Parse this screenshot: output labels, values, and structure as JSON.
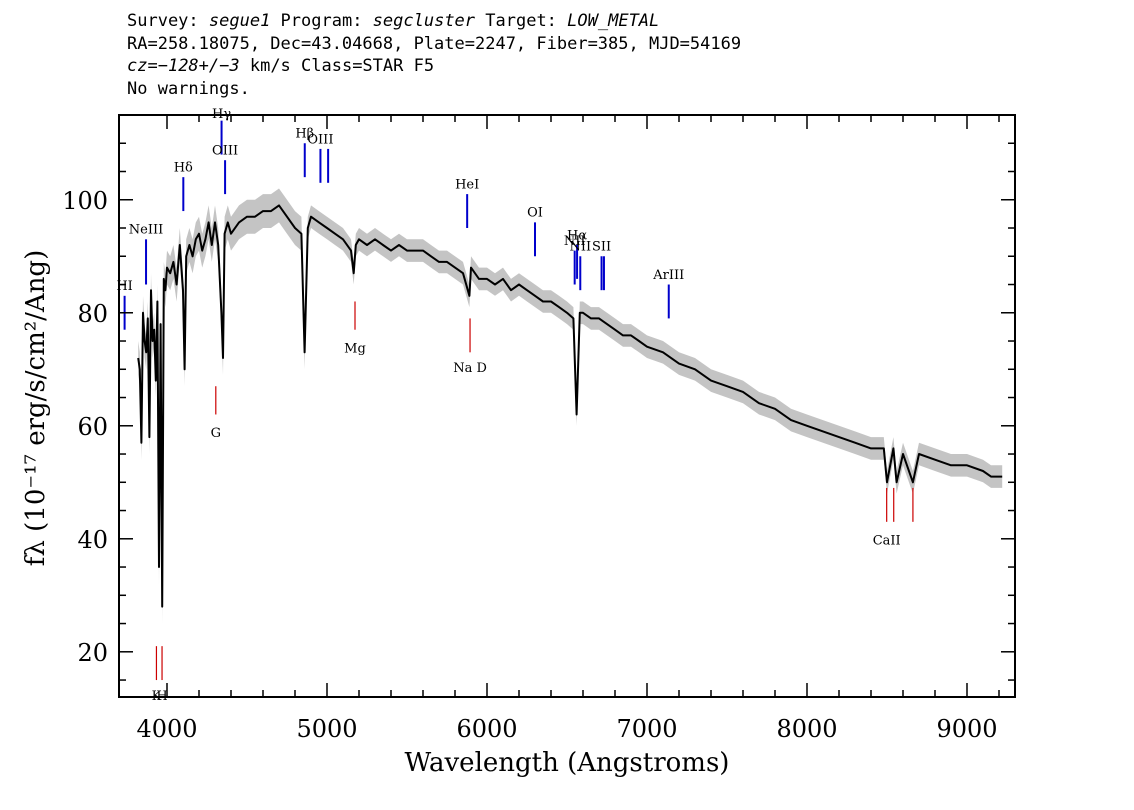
{
  "header": {
    "line1": {
      "survey_label": "Survey: ",
      "survey": "segue1",
      "program_label": " Program: ",
      "program": "segcluster",
      "target_label": " Target: ",
      "target": "LOW_METAL"
    },
    "line2": "RA=258.18075, Dec=43.04668, Plate=2247, Fiber=385, MJD=54169",
    "line3": {
      "cz_label": "cz=",
      "cz": "−128+/−3",
      "cz_rest": " km/s Class=STAR F5"
    },
    "line4": "No warnings."
  },
  "chart_data": {
    "type": "line",
    "xlabel": "Wavelength (Angstroms)",
    "ylabel": "fλ (10⁻¹⁷ erg/s/cm²/Ang)",
    "xlim": [
      3700,
      9300
    ],
    "ylim": [
      12,
      115
    ],
    "x_ticks": [
      4000,
      5000,
      6000,
      7000,
      8000,
      9000
    ],
    "y_ticks": [
      20,
      40,
      60,
      80,
      100
    ],
    "grid": false,
    "series": [
      {
        "role": "flux",
        "color": "#000000",
        "x": [
          3820,
          3830,
          3840,
          3850,
          3860,
          3870,
          3880,
          3890,
          3900,
          3910,
          3920,
          3930,
          3940,
          3950,
          3960,
          3970,
          3980,
          3990,
          4000,
          4020,
          4040,
          4060,
          4080,
          4100,
          4110,
          4120,
          4140,
          4160,
          4180,
          4200,
          4220,
          4240,
          4260,
          4280,
          4300,
          4320,
          4340,
          4350,
          4360,
          4380,
          4400,
          4450,
          4500,
          4550,
          4600,
          4650,
          4700,
          4750,
          4800,
          4840,
          4860,
          4880,
          4900,
          4950,
          5000,
          5050,
          5100,
          5150,
          5167,
          5180,
          5200,
          5250,
          5300,
          5350,
          5400,
          5450,
          5500,
          5550,
          5600,
          5650,
          5700,
          5750,
          5800,
          5850,
          5890,
          5900,
          5950,
          6000,
          6050,
          6100,
          6150,
          6200,
          6250,
          6300,
          6350,
          6400,
          6450,
          6500,
          6540,
          6560,
          6580,
          6600,
          6650,
          6700,
          6750,
          6800,
          6850,
          6900,
          6950,
          7000,
          7100,
          7200,
          7300,
          7400,
          7500,
          7600,
          7700,
          7800,
          7900,
          8000,
          8100,
          8200,
          8300,
          8400,
          8480,
          8500,
          8540,
          8560,
          8600,
          8662,
          8700,
          8800,
          8900,
          9000,
          9100,
          9150,
          9200,
          9220
        ],
        "y": [
          72,
          70,
          57,
          80,
          75,
          73,
          79,
          58,
          84,
          75,
          77,
          68,
          82,
          35,
          78,
          28,
          86,
          84,
          88,
          87,
          89,
          85,
          92,
          84,
          70,
          90,
          92,
          90,
          93,
          94,
          91,
          93,
          96,
          92,
          96,
          92,
          80,
          72,
          94,
          96,
          94,
          96,
          97,
          97,
          98,
          98,
          99,
          97,
          95,
          94,
          73,
          95,
          97,
          96,
          95,
          94,
          93,
          91,
          87,
          92,
          93,
          92,
          93,
          92,
          91,
          92,
          91,
          91,
          91,
          90,
          89,
          89,
          88,
          87,
          83,
          88,
          86,
          86,
          85,
          86,
          84,
          85,
          84,
          83,
          82,
          82,
          81,
          80,
          79,
          62,
          80,
          80,
          79,
          79,
          78,
          77,
          76,
          76,
          75,
          74,
          73,
          71,
          70,
          68,
          67,
          66,
          64,
          63,
          61,
          60,
          59,
          58,
          57,
          56,
          56,
          50,
          56,
          50,
          55,
          50,
          55,
          54,
          53,
          53,
          52,
          51,
          51,
          51
        ],
        "error": [
          3,
          3,
          3,
          3,
          3,
          3,
          3,
          3,
          3,
          3,
          3,
          3,
          3,
          3,
          3,
          3,
          3,
          3,
          3,
          3,
          3,
          3,
          3,
          3,
          3,
          3,
          3,
          3,
          3,
          3,
          3,
          3,
          3,
          3,
          3,
          3,
          3,
          3,
          3,
          3,
          3,
          3,
          3,
          3,
          3,
          3,
          3,
          3,
          3,
          3,
          3,
          2,
          2,
          2,
          2,
          2,
          2,
          2,
          2,
          2,
          2,
          2,
          2,
          2,
          2,
          2,
          2,
          2,
          2,
          2,
          2,
          2,
          2,
          2,
          2,
          2,
          2,
          2,
          2,
          2,
          2,
          2,
          2,
          2,
          2,
          2,
          2,
          2,
          2,
          2,
          2,
          2,
          2,
          2,
          2,
          2,
          2,
          2,
          2,
          2,
          2,
          2,
          2,
          2,
          2,
          2,
          2,
          2,
          2,
          2,
          2,
          2,
          2,
          2,
          2,
          2,
          2,
          2,
          2,
          2,
          2,
          2,
          2,
          2,
          2,
          2,
          2,
          2
        ]
      }
    ],
    "emission_lines": [
      {
        "label": "HI",
        "wavelength": 3735,
        "y_low": 77,
        "y_high": 83,
        "label_y": 84,
        "color": "#0000cc"
      },
      {
        "label": "NeIII",
        "wavelength": 3869,
        "y_low": 85,
        "y_high": 93,
        "label_y": 94,
        "color": "#0000cc"
      },
      {
        "label": "Hδ",
        "wavelength": 4102,
        "y_low": 98,
        "y_high": 104,
        "label_y": 105,
        "color": "#0000cc"
      },
      {
        "label": "Hγ",
        "wavelength": 4341,
        "y_low": 108,
        "y_high": 114,
        "label_y": 114.5,
        "color": "#0000cc"
      },
      {
        "label": "OIII",
        "wavelength": 4363,
        "y_low": 101,
        "y_high": 107,
        "label_y": 108,
        "color": "#0000cc"
      },
      {
        "label": "Hβ",
        "wavelength": 4861,
        "y_low": 104,
        "y_high": 110,
        "label_y": 111,
        "color": "#0000cc"
      },
      {
        "label": "OIII",
        "wavelength": 4959,
        "y_low": 103,
        "y_high": 109,
        "label_y": 110,
        "color": "#0000cc"
      },
      {
        "label": "",
        "wavelength": 5007,
        "y_low": 103,
        "y_high": 109,
        "label_y": 110,
        "color": "#0000cc"
      },
      {
        "label": "HeI",
        "wavelength": 5876,
        "y_low": 95,
        "y_high": 101,
        "label_y": 102,
        "color": "#0000cc"
      },
      {
        "label": "OI",
        "wavelength": 6300,
        "y_low": 90,
        "y_high": 96,
        "label_y": 97,
        "color": "#0000cc"
      },
      {
        "label": "NII",
        "wavelength": 6548,
        "y_low": 85,
        "y_high": 91,
        "label_y": 92,
        "color": "#0000cc"
      },
      {
        "label": "Hα",
        "wavelength": 6563,
        "y_low": 86,
        "y_high": 92,
        "label_y": 93,
        "color": "#0000cc"
      },
      {
        "label": "NII",
        "wavelength": 6583,
        "y_low": 84,
        "y_high": 90,
        "label_y": 91,
        "color": "#0000cc"
      },
      {
        "label": "SII",
        "wavelength": 6716,
        "y_low": 84,
        "y_high": 90,
        "label_y": 91,
        "color": "#0000cc"
      },
      {
        "label": "",
        "wavelength": 6731,
        "y_low": 84,
        "y_high": 90,
        "label_y": 91,
        "color": "#0000cc"
      },
      {
        "label": "ArIII",
        "wavelength": 7136,
        "y_low": 79,
        "y_high": 85,
        "label_y": 86,
        "color": "#0000cc"
      }
    ],
    "absorption_lines": [
      {
        "label": "K",
        "wavelength": 3934,
        "y_low": 15,
        "y_high": 21,
        "label_y": 11.5,
        "color": "#cc0000"
      },
      {
        "label": "H",
        "wavelength": 3969,
        "y_low": 15,
        "y_high": 21,
        "label_y": 11.5,
        "color": "#cc0000"
      },
      {
        "label": "G",
        "wavelength": 4305,
        "y_low": 62,
        "y_high": 67,
        "label_y": 58,
        "color": "#cc0000"
      },
      {
        "label": "Mg",
        "wavelength": 5175,
        "y_low": 77,
        "y_high": 82,
        "label_y": 73,
        "color": "#cc0000"
      },
      {
        "label": "Na D",
        "wavelength": 5894,
        "y_low": 73,
        "y_high": 79,
        "label_y": 69.5,
        "color": "#cc0000"
      },
      {
        "label": "CaII",
        "wavelength": 8498,
        "y_low": 43,
        "y_high": 49,
        "label_y": 39,
        "color": "#cc0000"
      },
      {
        "label": "",
        "wavelength": 8542,
        "y_low": 43,
        "y_high": 49,
        "label_y": 39,
        "color": "#cc0000"
      },
      {
        "label": "",
        "wavelength": 8662,
        "y_low": 43,
        "y_high": 49,
        "label_y": 39,
        "color": "#cc0000"
      }
    ]
  }
}
